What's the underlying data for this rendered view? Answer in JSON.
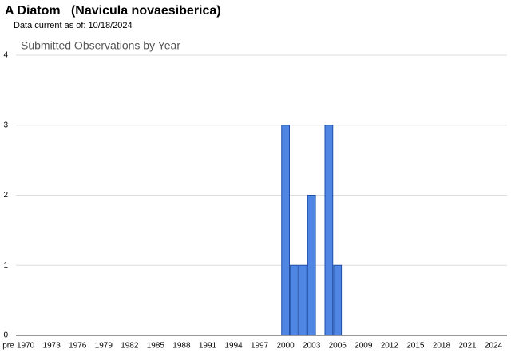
{
  "chart_data": {
    "type": "bar",
    "title": "A Diatom   (Navicula novaesiberica)",
    "subtitle": "Data current as of: 10/18/2024",
    "chart_title": "Submitted Observations by Year",
    "categories": [
      "pre",
      null,
      "1970",
      null,
      null,
      "1973",
      null,
      null,
      "1976",
      null,
      null,
      "1979",
      null,
      null,
      "1982",
      null,
      null,
      "1985",
      null,
      null,
      "1988",
      null,
      null,
      "1991",
      null,
      null,
      "1994",
      null,
      null,
      "1997",
      null,
      null,
      "2000",
      null,
      null,
      "2003",
      null,
      null,
      "2006",
      null,
      null,
      "2009",
      null,
      null,
      "2012",
      null,
      null,
      "2015",
      null,
      null,
      "2018",
      null,
      null,
      "2021",
      null,
      null,
      "2024"
    ],
    "values": [
      0,
      0,
      0,
      0,
      0,
      0,
      0,
      0,
      0,
      0,
      0,
      0,
      0,
      0,
      0,
      0,
      0,
      0,
      0,
      0,
      0,
      0,
      0,
      0,
      0,
      0,
      0,
      0,
      0,
      0,
      0,
      0,
      3,
      1,
      1,
      2,
      0,
      3,
      1,
      0,
      0,
      0,
      0,
      0,
      0,
      0,
      0,
      0,
      0,
      0,
      0,
      0,
      0,
      0,
      0,
      0,
      0
    ],
    "color": "#4f86e3",
    "ylim": [
      0,
      4
    ],
    "yticks": [
      0,
      1,
      2,
      3,
      4
    ],
    "grid": true
  }
}
